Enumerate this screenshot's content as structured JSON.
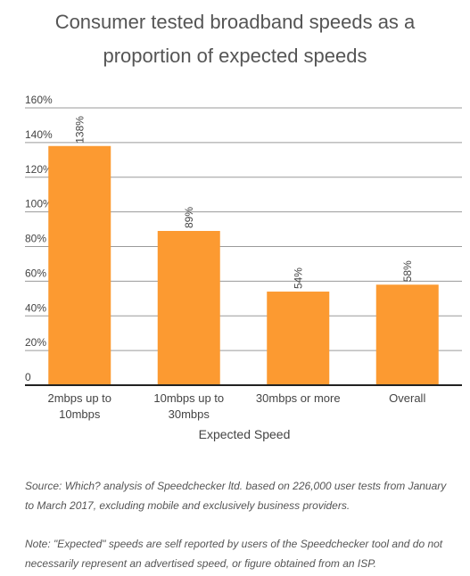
{
  "title_line1": "Consumer tested broadband speeds as a",
  "title_line2": "proportion of expected speeds",
  "source_note": "Source: Which? analysis of Speedchecker ltd. based on 226,000 user tests from January to March 2017, excluding mobile and exclusively business providers.",
  "expected_note": "Note: \"Expected\" speeds are self reported by users of the Speedchecker tool and do not necessarily represent an advertised speed, or figure obtained from an ISP.",
  "bar_color": "#fc9a31",
  "chart_data": {
    "type": "bar",
    "title": "Consumer tested broadband speeds as a proportion of expected speeds",
    "categories": [
      [
        "2mbps up to",
        "10mbps"
      ],
      [
        "10mbps up to",
        "30mbps"
      ],
      [
        "30mbps or more"
      ],
      [
        "Overall"
      ]
    ],
    "values": [
      138,
      89,
      54,
      58
    ],
    "data_labels": [
      "138%",
      "89%",
      "54%",
      "58%"
    ],
    "xlabel": "Expected Speed",
    "ylabel": "",
    "ylim": [
      0,
      160
    ],
    "yticks": [
      0,
      20,
      40,
      60,
      80,
      100,
      120,
      140,
      160
    ],
    "ytick_labels": [
      "0",
      "20%",
      "40%",
      "60%",
      "80%",
      "100%",
      "120%",
      "140%",
      "160%"
    ],
    "grid": true
  }
}
